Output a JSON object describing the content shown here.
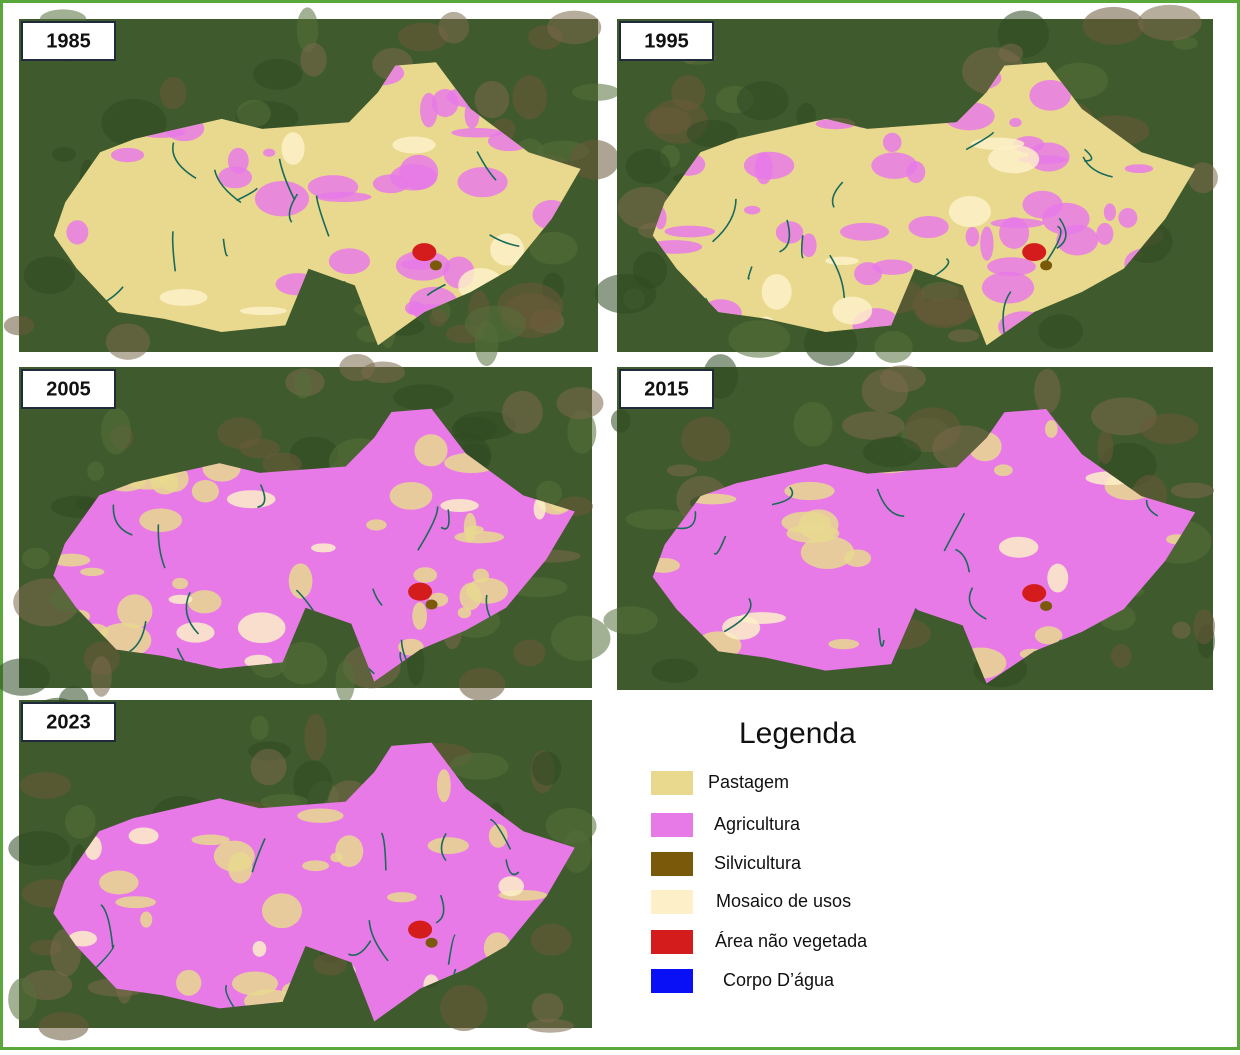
{
  "panels": [
    {
      "label": "1985"
    },
    {
      "label": "1995"
    },
    {
      "label": "2005"
    },
    {
      "label": "2015"
    },
    {
      "label": "2023"
    }
  ],
  "legend": {
    "title": "Legenda",
    "items": [
      {
        "label": "Pastagem",
        "color": "#e8d98f"
      },
      {
        "label": "Agricultura",
        "color": "#e87ae8"
      },
      {
        "label": "Silvicultura",
        "color": "#7a5a0a"
      },
      {
        "label": "Mosaico de usos",
        "color": "#fdf0c8"
      },
      {
        "label": "Área não vegetada",
        "color": "#d41c1c"
      },
      {
        "label": "Corpo D’água",
        "color": "#0a10f5"
      }
    ]
  }
}
